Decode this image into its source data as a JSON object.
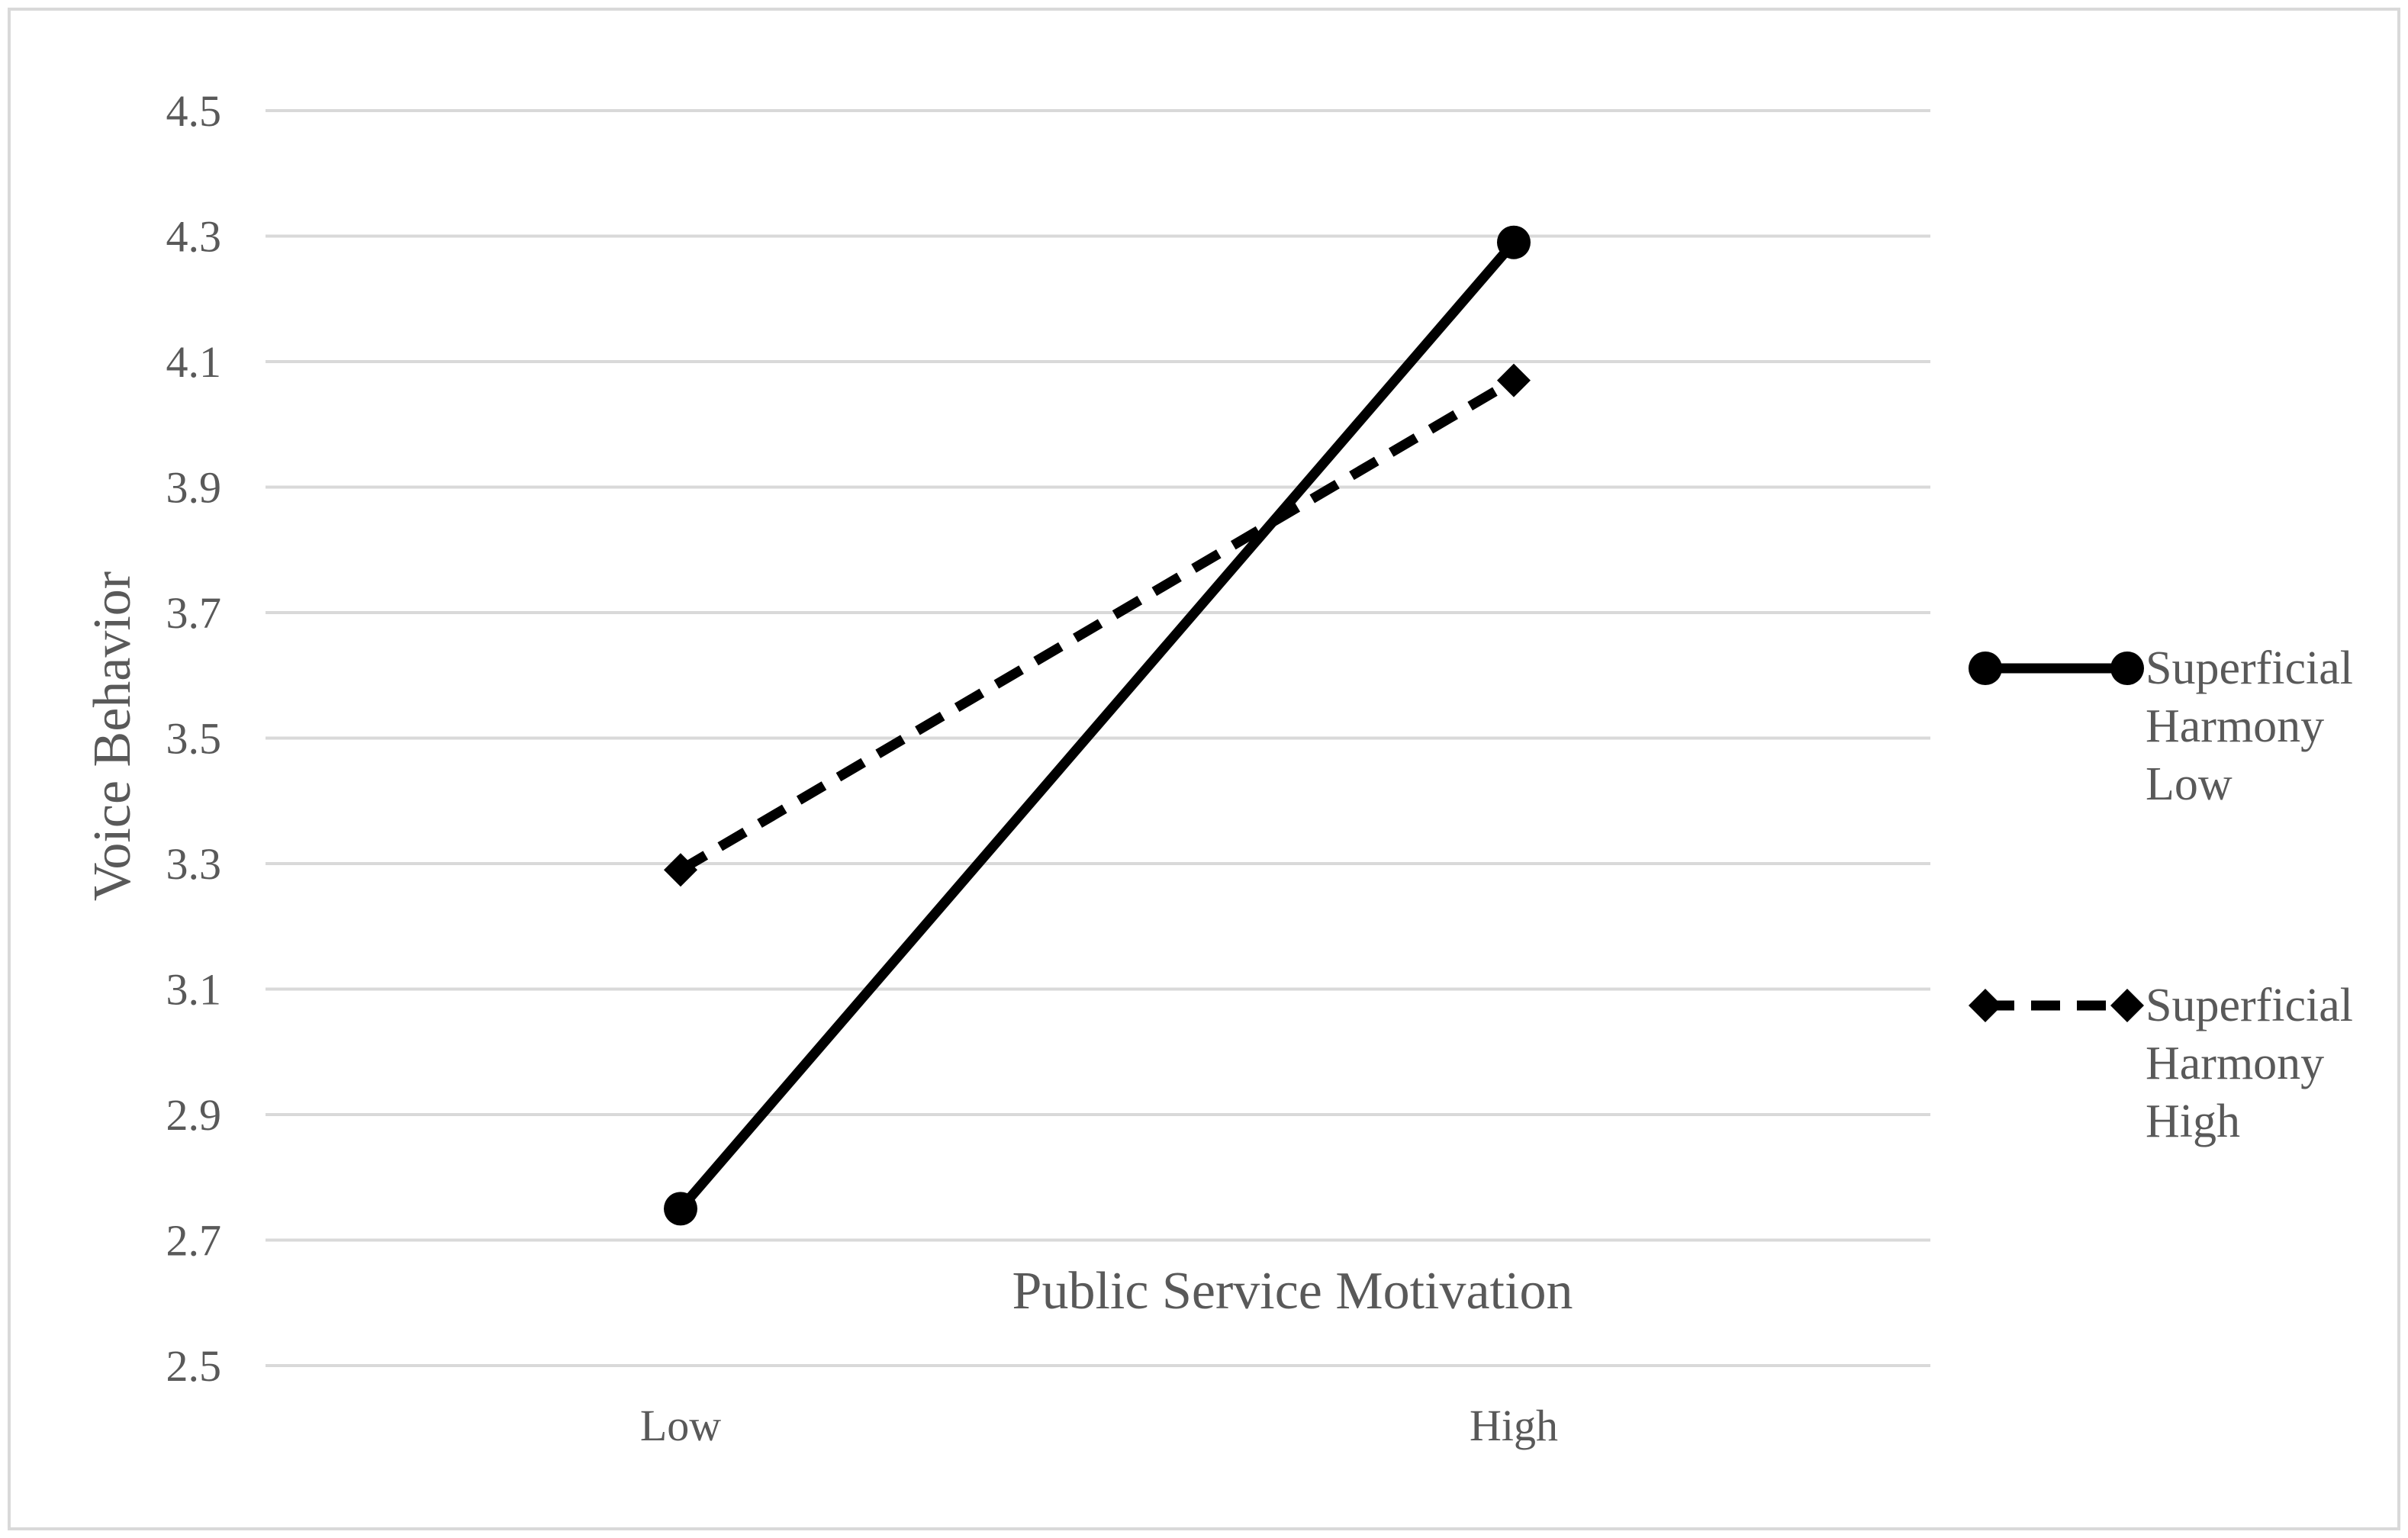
{
  "chart_data": {
    "type": "line",
    "title": "",
    "xlabel": "Public Service Motivation",
    "ylabel": "Voice Behavior",
    "categories": [
      "Low",
      "High"
    ],
    "ylim": [
      2.5,
      4.5
    ],
    "yticks": [
      "2.5",
      "2.7",
      "2.9",
      "3.1",
      "3.3",
      "3.5",
      "3.7",
      "3.9",
      "4.1",
      "4.3",
      "4.5"
    ],
    "grid": true,
    "legend_position": "right",
    "series": [
      {
        "name": "Superficial Harmony Low",
        "legend_lines": [
          "Superficial",
          "Harmony",
          "Low"
        ],
        "values": [
          2.75,
          4.29
        ],
        "line_style": "solid",
        "marker": "circle",
        "color": "#000000"
      },
      {
        "name": "Superficial Harmony High",
        "legend_lines": [
          "Superficial",
          "Harmony",
          "High"
        ],
        "values": [
          3.29,
          4.07
        ],
        "line_style": "dashed",
        "marker": "diamond",
        "color": "#000000"
      }
    ]
  },
  "colors": {
    "gridline": "#d9d9d9",
    "text": "#595959",
    "frame": "#d9d9d9"
  }
}
